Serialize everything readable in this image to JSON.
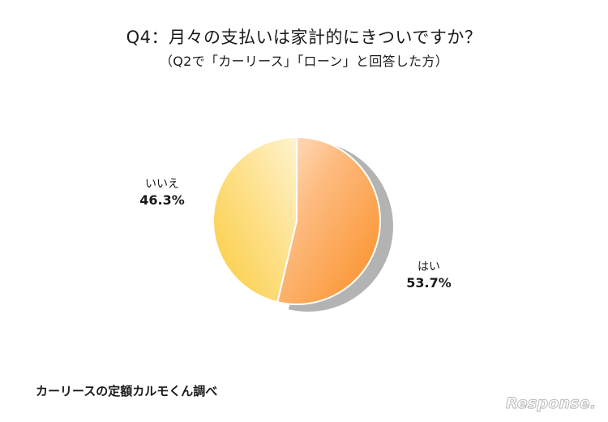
{
  "chart_data": {
    "type": "pie",
    "title": "Q4：月々の支払いは家計的にきついですか？",
    "subtitle": "（Q2で「カーリース」「ローン」と回答した方）",
    "categories": [
      "はい",
      "いいえ"
    ],
    "values": [
      53.7,
      46.3
    ],
    "value_labels": [
      "53.7%",
      "46.3%"
    ],
    "start_angle": "12 o'clock, clockwise",
    "colors": [
      "#fa9428",
      "#fdd54a"
    ],
    "legend": "none"
  },
  "source": "カーリースの定額カルモくん調べ",
  "brand": "Response."
}
